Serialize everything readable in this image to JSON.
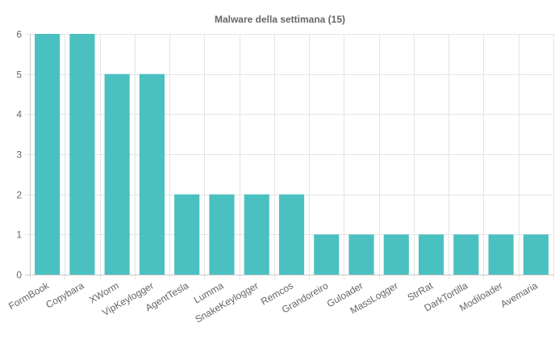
{
  "chart_data": {
    "type": "bar",
    "title": "Malware della settimana (15)",
    "xlabel": "",
    "ylabel": "",
    "categories": [
      "FormBook",
      "Copybara",
      "XWorm",
      "VipKeylogger",
      "AgentTesla",
      "Lumma",
      "SnakeKeylogger",
      "Remcos",
      "Grandoreiro",
      "Guloader",
      "MassLogger",
      "StrRat",
      "DarkTortilla",
      "Modiloader",
      "Avemaria"
    ],
    "values": [
      6,
      6,
      5,
      5,
      2,
      2,
      2,
      2,
      1,
      1,
      1,
      1,
      1,
      1,
      1
    ],
    "ylim": [
      0,
      6
    ],
    "yticks": [
      0,
      1,
      2,
      3,
      4,
      5,
      6
    ],
    "grid": true,
    "legend": "none",
    "bar_color": "#4bc0c0"
  }
}
